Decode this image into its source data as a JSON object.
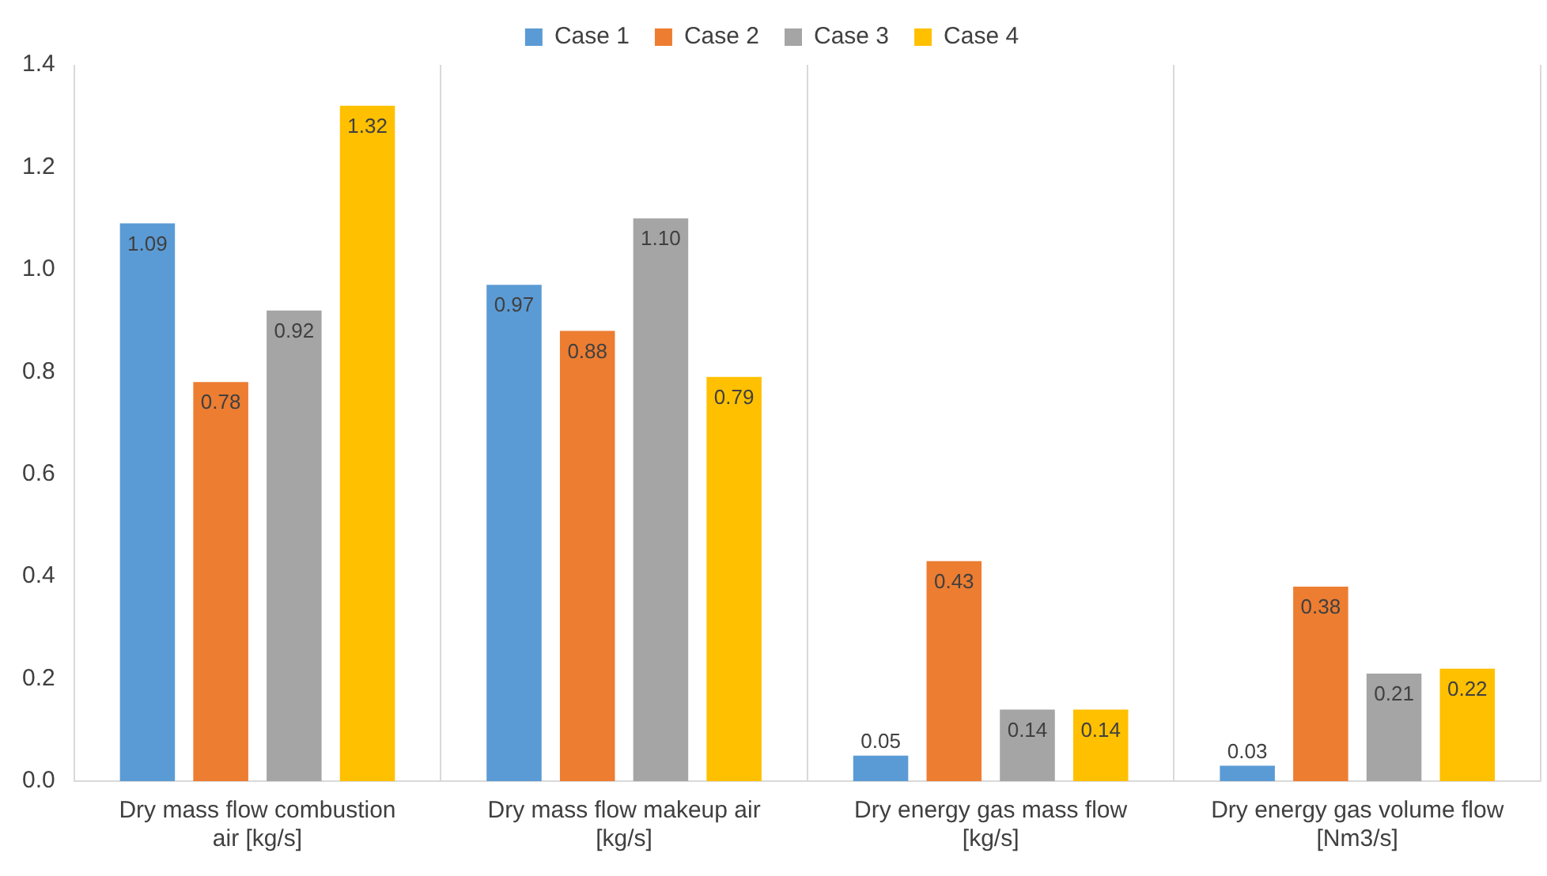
{
  "chart_data": {
    "type": "bar",
    "categories": [
      "Dry mass flow combustion air [kg/s]",
      "Dry mass flow makeup air [kg/s]",
      "Dry energy gas mass flow [kg/s]",
      "Dry energy gas volume flow [Nm3/s]"
    ],
    "series": [
      {
        "name": "Case 1",
        "color": "#5b9bd5",
        "values": [
          1.09,
          0.97,
          0.05,
          0.03
        ],
        "value_labels": [
          "1.09",
          "0.97",
          "0.05",
          "0.03"
        ]
      },
      {
        "name": "Case 2",
        "color": "#ed7d31",
        "values": [
          0.78,
          0.88,
          0.43,
          0.38
        ],
        "value_labels": [
          "0.78",
          "0.88",
          "0.43",
          "0.38"
        ]
      },
      {
        "name": "Case 3",
        "color": "#a5a5a5",
        "values": [
          0.92,
          1.1,
          0.14,
          0.21
        ],
        "value_labels": [
          "0.92",
          "1.10",
          "0.14",
          "0.21"
        ]
      },
      {
        "name": "Case 4",
        "color": "#ffc000",
        "values": [
          1.32,
          0.79,
          0.14,
          0.22
        ],
        "value_labels": [
          "1.32",
          "0.79",
          "0.14",
          "0.22"
        ]
      }
    ],
    "ylim": [
      0,
      1.4
    ],
    "yticks": [
      {
        "value": 0,
        "label": "0.0"
      },
      {
        "value": 0.2,
        "label": "0.2"
      },
      {
        "value": 0.4,
        "label": "0.4"
      },
      {
        "value": 0.6,
        "label": "0.6"
      },
      {
        "value": 0.8,
        "label": "0.8"
      },
      {
        "value": 1,
        "label": "1.0"
      },
      {
        "value": 1.2,
        "label": "1.2"
      },
      {
        "value": 1.4,
        "label": "1.4"
      }
    ],
    "grid": "x",
    "legend": "top"
  }
}
